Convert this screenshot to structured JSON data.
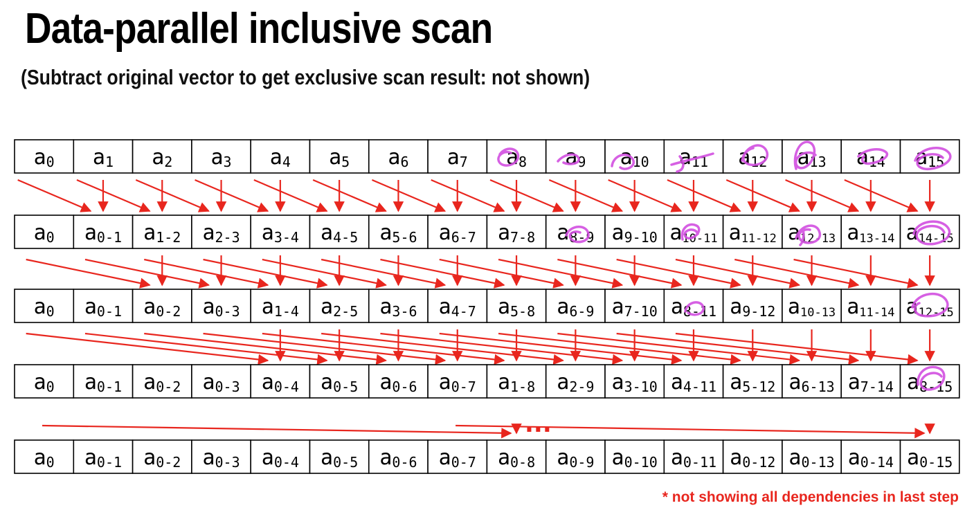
{
  "title": "Data-parallel inclusive scan",
  "subtitle": "(Subtract original vector to get exclusive scan result: not shown)",
  "footnote": "* not showing all dependencies in last step",
  "ellipsis": "...",
  "colors": {
    "arrow": "#e8261e",
    "annotation": "#d14fe0",
    "footnote": "#e8261e"
  },
  "rows": [
    {
      "cells": [
        [
          "a",
          "0"
        ],
        [
          "a",
          "1"
        ],
        [
          "a",
          "2"
        ],
        [
          "a",
          "3"
        ],
        [
          "a",
          "4"
        ],
        [
          "a",
          "5"
        ],
        [
          "a",
          "6"
        ],
        [
          "a",
          "7"
        ],
        [
          "a",
          "8"
        ],
        [
          "a",
          "9"
        ],
        [
          "a",
          "10"
        ],
        [
          "a",
          "11"
        ],
        [
          "a",
          "12"
        ],
        [
          "a",
          "13"
        ],
        [
          "a",
          "14"
        ],
        [
          "a",
          "15"
        ]
      ]
    },
    {
      "cells": [
        [
          "a",
          "0"
        ],
        [
          "a",
          "0-1"
        ],
        [
          "a",
          "1-2"
        ],
        [
          "a",
          "2-3"
        ],
        [
          "a",
          "3-4"
        ],
        [
          "a",
          "4-5"
        ],
        [
          "a",
          "5-6"
        ],
        [
          "a",
          "6-7"
        ],
        [
          "a",
          "7-8"
        ],
        [
          "a",
          "8-9"
        ],
        [
          "a",
          "9-10"
        ],
        [
          "a",
          "10-11"
        ],
        [
          "a",
          "11-12"
        ],
        [
          "a",
          "12-13"
        ],
        [
          "a",
          "13-14"
        ],
        [
          "a",
          "14-15"
        ]
      ]
    },
    {
      "cells": [
        [
          "a",
          "0"
        ],
        [
          "a",
          "0-1"
        ],
        [
          "a",
          "0-2"
        ],
        [
          "a",
          "0-3"
        ],
        [
          "a",
          "1-4"
        ],
        [
          "a",
          "2-5"
        ],
        [
          "a",
          "3-6"
        ],
        [
          "a",
          "4-7"
        ],
        [
          "a",
          "5-8"
        ],
        [
          "a",
          "6-9"
        ],
        [
          "a",
          "7-10"
        ],
        [
          "a",
          "8-11"
        ],
        [
          "a",
          "9-12"
        ],
        [
          "a",
          "10-13"
        ],
        [
          "a",
          "11-14"
        ],
        [
          "a",
          "12-15"
        ]
      ]
    },
    {
      "cells": [
        [
          "a",
          "0"
        ],
        [
          "a",
          "0-1"
        ],
        [
          "a",
          "0-2"
        ],
        [
          "a",
          "0-3"
        ],
        [
          "a",
          "0-4"
        ],
        [
          "a",
          "0-5"
        ],
        [
          "a",
          "0-6"
        ],
        [
          "a",
          "0-7"
        ],
        [
          "a",
          "1-8"
        ],
        [
          "a",
          "2-9"
        ],
        [
          "a",
          "3-10"
        ],
        [
          "a",
          "4-11"
        ],
        [
          "a",
          "5-12"
        ],
        [
          "a",
          "6-13"
        ],
        [
          "a",
          "7-14"
        ],
        [
          "a",
          "8-15"
        ]
      ]
    },
    {
      "cells": [
        [
          "a",
          "0"
        ],
        [
          "a",
          "0-1"
        ],
        [
          "a",
          "0-2"
        ],
        [
          "a",
          "0-3"
        ],
        [
          "a",
          "0-4"
        ],
        [
          "a",
          "0-5"
        ],
        [
          "a",
          "0-6"
        ],
        [
          "a",
          "0-7"
        ],
        [
          "a",
          "0-8"
        ],
        [
          "a",
          "0-9"
        ],
        [
          "a",
          "0-10"
        ],
        [
          "a",
          "0-11"
        ],
        [
          "a",
          "0-12"
        ],
        [
          "a",
          "0-13"
        ],
        [
          "a",
          "0-14"
        ],
        [
          "a",
          "0-15"
        ]
      ]
    }
  ],
  "steps": [
    {
      "offset": 1
    },
    {
      "offset": 2
    },
    {
      "offset": 4
    },
    {
      "offset": 8,
      "partial": true,
      "shown_targets": [
        8,
        15
      ]
    }
  ]
}
